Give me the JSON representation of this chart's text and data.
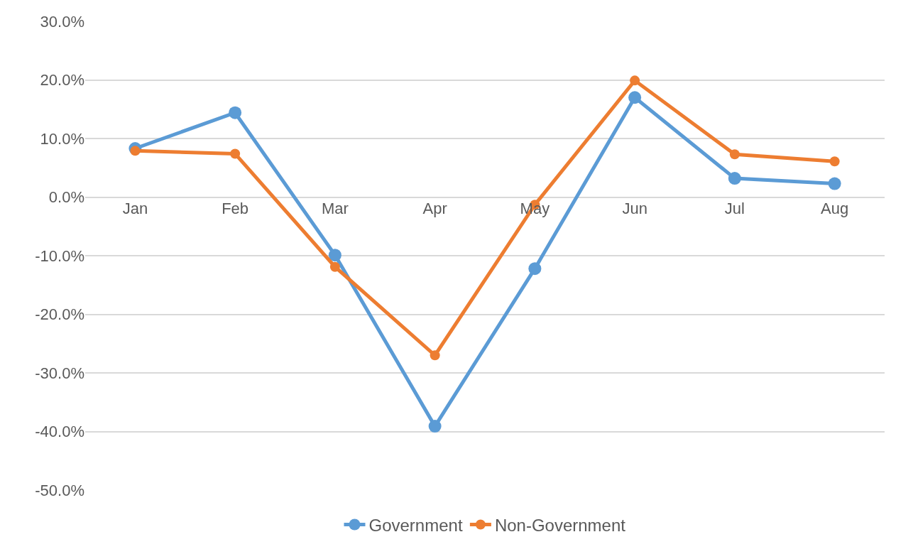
{
  "chart_data": {
    "type": "line",
    "categories": [
      "Jan",
      "Feb",
      "Mar",
      "Apr",
      "May",
      "Jun",
      "Jul",
      "Aug"
    ],
    "series": [
      {
        "name": "Government",
        "color": "#5b9bd5",
        "values": [
          8.3,
          14.4,
          -9.9,
          -39.1,
          -12.2,
          17.0,
          3.2,
          2.3
        ]
      },
      {
        "name": "Non-Government",
        "color": "#ed7d31",
        "values": [
          7.9,
          7.4,
          -11.9,
          -27.0,
          -1.3,
          19.9,
          7.3,
          6.1
        ]
      }
    ],
    "ylim": [
      -50,
      30
    ],
    "yticks": [
      {
        "value": -50,
        "label": "-50.0%"
      },
      {
        "value": -40,
        "label": "-40.0%"
      },
      {
        "value": -30,
        "label": "-30.0%"
      },
      {
        "value": -20,
        "label": "-20.0%"
      },
      {
        "value": -10,
        "label": "-10.0%"
      },
      {
        "value": 0,
        "label": "0.0%"
      },
      {
        "value": 10,
        "label": "10.0%"
      },
      {
        "value": 20,
        "label": "20.0%"
      },
      {
        "value": 30,
        "label": "30.0%"
      }
    ],
    "grid": "y",
    "legend": "bottom",
    "marker": "circle",
    "line_style": "solid"
  }
}
